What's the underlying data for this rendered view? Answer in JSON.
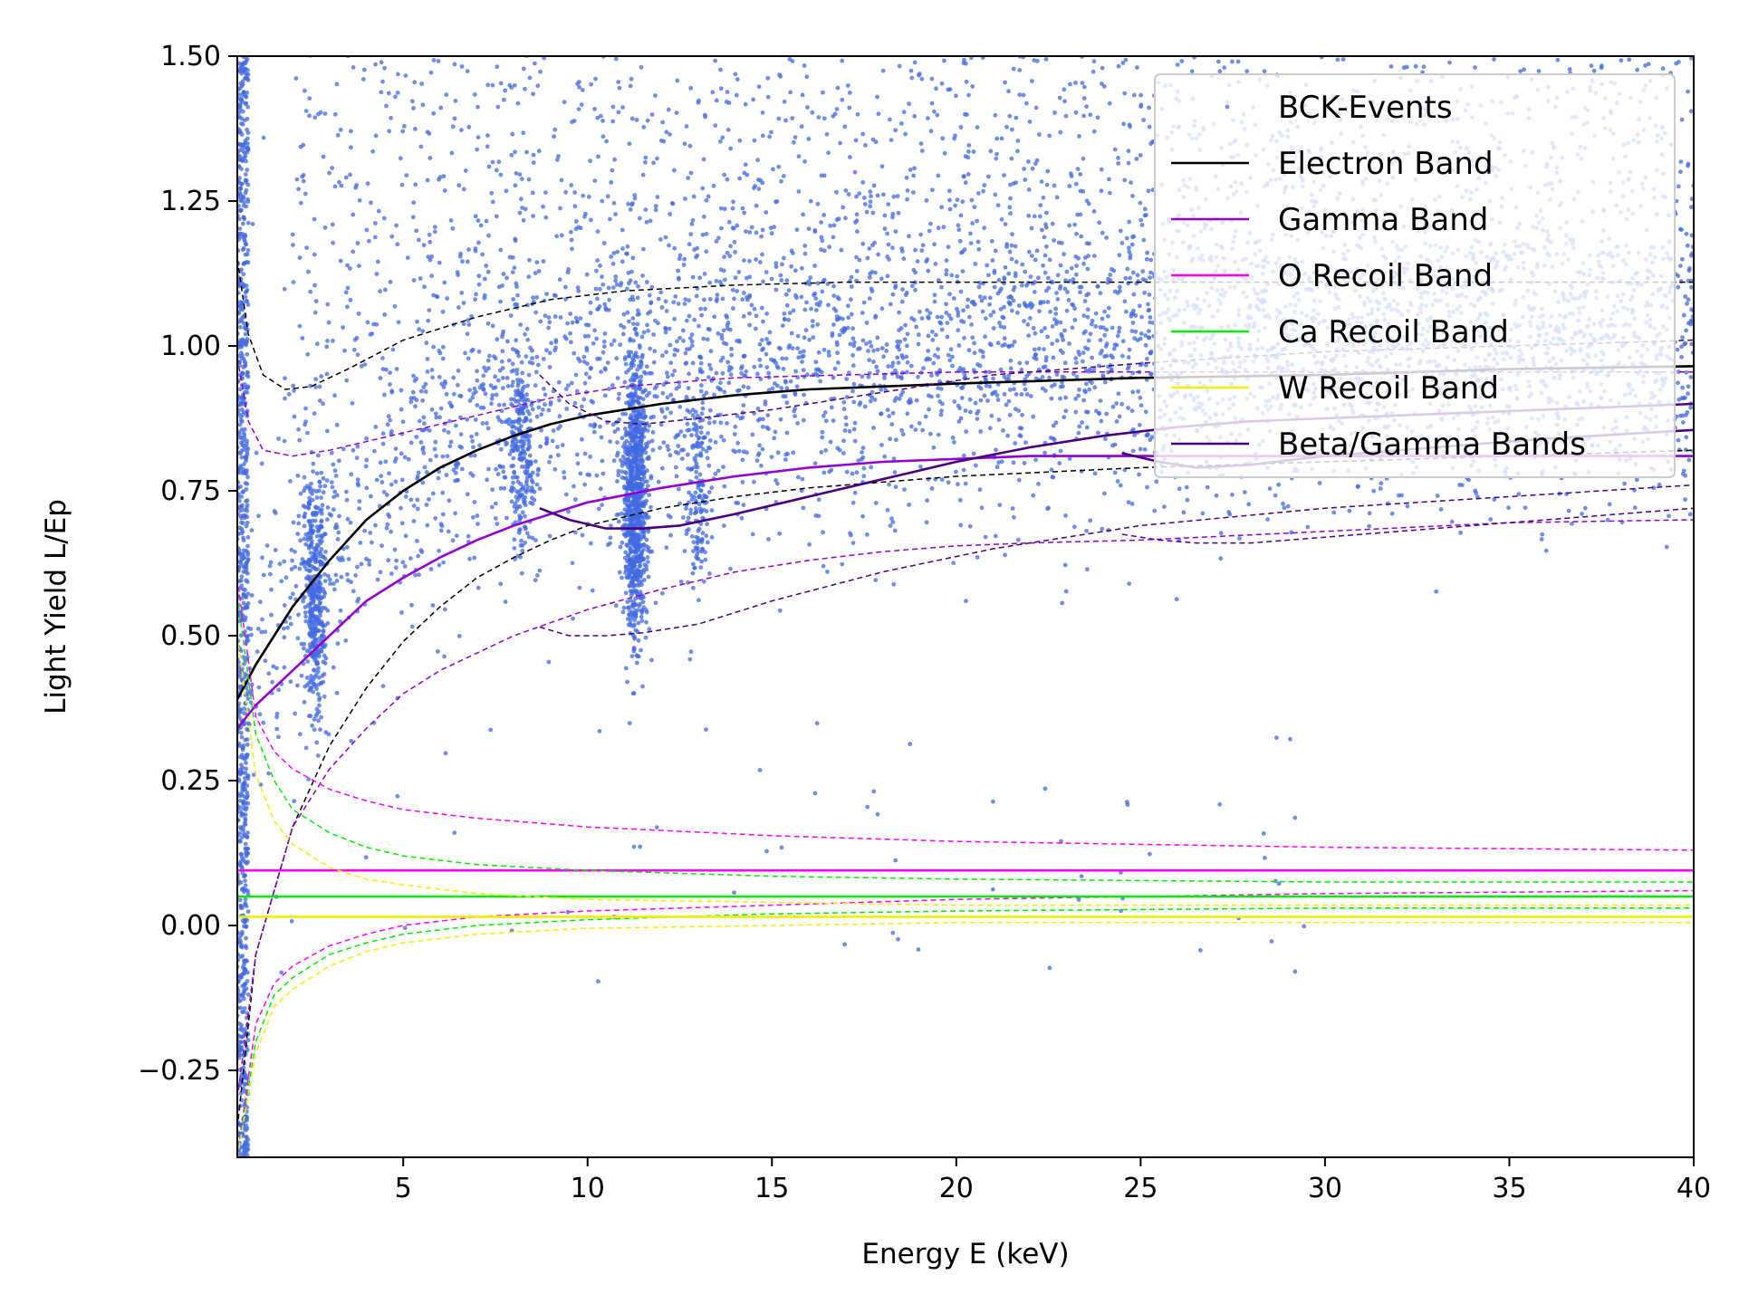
{
  "chart_data": {
    "type": "scatter",
    "xlabel": "Energy E (keV)",
    "ylabel": "Light Yield L/Ep",
    "xlim": [
      0.5,
      40
    ],
    "ylim": [
      -0.4,
      1.5
    ],
    "xticks": [
      5,
      10,
      15,
      20,
      25,
      30,
      35,
      40
    ],
    "xtick_labels": [
      "5",
      "10",
      "15",
      "20",
      "25",
      "30",
      "35",
      "40"
    ],
    "yticks": [
      -0.25,
      0,
      0.25,
      0.5,
      0.75,
      1.0,
      1.25,
      1.5
    ],
    "ytick_labels": [
      "−0.25",
      "0.00",
      "0.25",
      "0.50",
      "0.75",
      "1.00",
      "1.25",
      "1.50"
    ],
    "legend_position": "top-right",
    "scatter_series": {
      "name": "BCK-Events",
      "color": "#4169e1",
      "approx_count": 9000,
      "clusters": [
        {
          "label": "continuum",
          "x_range": [
            0.5,
            40
          ],
          "y_center": "electron band",
          "spread": 0.13
        },
        {
          "label": "low-energy noise",
          "x_range": [
            0.5,
            0.8
          ],
          "y_range": [
            -0.4,
            1.5
          ]
        },
        {
          "label": "line ~2.6 keV",
          "x": 2.6,
          "y_range": [
            0.3,
            0.85
          ]
        },
        {
          "label": "line ~8.2 keV",
          "x": 8.2,
          "y_range": [
            0.6,
            1.0
          ]
        },
        {
          "label": "line ~11.3 keV",
          "x": 11.3,
          "y_range": [
            0.45,
            1.02
          ]
        },
        {
          "label": "line ~13 keV",
          "x": 13.0,
          "y_range": [
            0.55,
            0.95
          ]
        }
      ]
    },
    "band_lines": [
      {
        "name": "Electron Band",
        "color": "#000000",
        "style": "solid",
        "x": [
          0.5,
          1,
          2,
          3,
          4,
          5,
          6,
          7,
          8,
          9,
          10,
          12,
          14,
          16,
          18,
          20,
          25,
          30,
          35,
          40
        ],
        "y": [
          0.39,
          0.45,
          0.55,
          0.63,
          0.7,
          0.75,
          0.79,
          0.82,
          0.845,
          0.865,
          0.88,
          0.9,
          0.915,
          0.925,
          0.93,
          0.935,
          0.945,
          0.95,
          0.96,
          0.965
        ]
      },
      {
        "name": "Electron Band upper",
        "color": "#000000",
        "style": "dashed",
        "x": [
          0.5,
          0.8,
          1.2,
          1.8,
          2.5,
          3.5,
          5,
          7,
          9,
          11,
          14,
          17,
          20,
          25,
          30,
          35,
          40
        ],
        "y": [
          1.15,
          1.02,
          0.95,
          0.925,
          0.93,
          0.96,
          1.01,
          1.05,
          1.08,
          1.095,
          1.105,
          1.11,
          1.11,
          1.11,
          1.11,
          1.11,
          1.11
        ]
      },
      {
        "name": "Electron Band lower",
        "color": "#000000",
        "style": "dashed",
        "x": [
          0.5,
          1,
          2,
          3,
          4,
          5,
          6,
          7,
          8,
          9,
          10,
          12,
          14,
          16,
          18,
          20,
          25,
          30,
          35,
          40
        ],
        "y": [
          -0.35,
          -0.05,
          0.17,
          0.31,
          0.41,
          0.49,
          0.55,
          0.6,
          0.635,
          0.665,
          0.69,
          0.72,
          0.74,
          0.755,
          0.765,
          0.775,
          0.79,
          0.8,
          0.81,
          0.82
        ]
      },
      {
        "name": "Gamma Band",
        "color": "#9400d3",
        "style": "solid",
        "x": [
          0.5,
          1,
          2,
          3,
          4,
          5,
          6,
          7,
          8,
          9,
          10,
          12,
          14,
          16,
          18,
          20,
          22,
          24,
          25,
          30,
          35,
          40
        ],
        "y": [
          0.34,
          0.38,
          0.44,
          0.5,
          0.56,
          0.6,
          0.635,
          0.665,
          0.69,
          0.71,
          0.73,
          0.755,
          0.775,
          0.79,
          0.8,
          0.805,
          0.81,
          0.81,
          0.81,
          0.81,
          0.81,
          0.81
        ]
      },
      {
        "name": "Gamma Band upper",
        "color": "#9400d3",
        "style": "dashed",
        "x": [
          0.5,
          0.8,
          1.2,
          2,
          3,
          5,
          7,
          9,
          11,
          14,
          17,
          20,
          25,
          30,
          35,
          40
        ],
        "y": [
          0.98,
          0.87,
          0.82,
          0.81,
          0.82,
          0.85,
          0.88,
          0.91,
          0.93,
          0.945,
          0.95,
          0.955,
          0.955,
          0.955,
          0.955,
          0.955
        ]
      },
      {
        "name": "Gamma Band lower",
        "color": "#9400d3",
        "style": "dashed",
        "x": [
          0.5,
          1,
          2,
          3,
          4,
          5,
          6,
          8,
          10,
          12,
          14,
          16,
          18,
          20,
          22,
          25,
          30,
          35,
          40
        ],
        "y": [
          -0.3,
          -0.05,
          0.17,
          0.27,
          0.34,
          0.4,
          0.44,
          0.5,
          0.545,
          0.58,
          0.61,
          0.63,
          0.645,
          0.655,
          0.66,
          0.665,
          0.68,
          0.695,
          0.7
        ]
      },
      {
        "name": "O Recoil Band",
        "color": "#ff00ff",
        "style": "solid",
        "x": [
          0.5,
          40
        ],
        "y": [
          0.095,
          0.095
        ]
      },
      {
        "name": "O Recoil Band upper",
        "color": "#ff00ff",
        "style": "dashed",
        "x": [
          0.5,
          1,
          1.5,
          2,
          3,
          4,
          5,
          7,
          10,
          15,
          20,
          30,
          40
        ],
        "y": [
          0.6,
          0.36,
          0.3,
          0.27,
          0.235,
          0.215,
          0.2,
          0.185,
          0.17,
          0.155,
          0.145,
          0.135,
          0.13
        ]
      },
      {
        "name": "O Recoil Band lower",
        "color": "#ff00ff",
        "style": "dashed",
        "x": [
          0.5,
          1,
          1.5,
          2,
          3,
          4,
          5,
          7,
          10,
          15,
          20,
          30,
          40
        ],
        "y": [
          -0.4,
          -0.17,
          -0.1,
          -0.07,
          -0.035,
          -0.015,
          0.0,
          0.015,
          0.025,
          0.035,
          0.045,
          0.055,
          0.06
        ]
      },
      {
        "name": "Ca Recoil Band",
        "color": "#00ee00",
        "style": "solid",
        "x": [
          0.5,
          40
        ],
        "y": [
          0.05,
          0.05
        ]
      },
      {
        "name": "Ca Recoil Band upper",
        "color": "#00ee00",
        "style": "dashed",
        "x": [
          0.5,
          1,
          1.5,
          2,
          3,
          4,
          5,
          7,
          10,
          15,
          20,
          30,
          40
        ],
        "y": [
          0.57,
          0.33,
          0.25,
          0.2,
          0.16,
          0.135,
          0.12,
          0.105,
          0.095,
          0.085,
          0.08,
          0.075,
          0.075
        ]
      },
      {
        "name": "Ca Recoil Band lower",
        "color": "#00ee00",
        "style": "dashed",
        "x": [
          0.5,
          1,
          1.5,
          2,
          3,
          4,
          5,
          7,
          10,
          15,
          20,
          30,
          40
        ],
        "y": [
          -0.4,
          -0.2,
          -0.12,
          -0.09,
          -0.05,
          -0.03,
          -0.015,
          0.0,
          0.01,
          0.02,
          0.025,
          0.03,
          0.03
        ]
      },
      {
        "name": "W Recoil Band",
        "color": "#f0f000",
        "style": "solid",
        "x": [
          0.5,
          40
        ],
        "y": [
          0.015,
          0.015
        ]
      },
      {
        "name": "W Recoil Band upper",
        "color": "#f0f000",
        "style": "dashed",
        "x": [
          0.5,
          1,
          1.5,
          2,
          3,
          4,
          5,
          7,
          10,
          15,
          20,
          30,
          40
        ],
        "y": [
          0.5,
          0.26,
          0.18,
          0.14,
          0.1,
          0.08,
          0.07,
          0.055,
          0.045,
          0.04,
          0.035,
          0.035,
          0.035
        ]
      },
      {
        "name": "W Recoil Band lower",
        "color": "#f0f000",
        "style": "dashed",
        "x": [
          0.5,
          1,
          1.5,
          2,
          3,
          4,
          5,
          7,
          10,
          15,
          20,
          30,
          40
        ],
        "y": [
          -0.4,
          -0.22,
          -0.14,
          -0.11,
          -0.07,
          -0.045,
          -0.03,
          -0.015,
          -0.005,
          0.0,
          0.005,
          0.005,
          0.005
        ]
      },
      {
        "name": "Beta/Gamma Band 1",
        "color": "#4b0082",
        "style": "solid",
        "x": [
          8.7,
          9.5,
          10.5,
          11.5,
          12.5,
          14,
          16,
          18,
          20,
          22,
          24,
          26,
          28,
          30,
          34,
          40
        ],
        "y": [
          0.72,
          0.7,
          0.685,
          0.685,
          0.69,
          0.71,
          0.74,
          0.77,
          0.8,
          0.825,
          0.845,
          0.86,
          0.87,
          0.875,
          0.885,
          0.9
        ]
      },
      {
        "name": "Beta/Gamma Band 1 upper",
        "color": "#4b0082",
        "style": "dashed",
        "x": [
          8.7,
          9.5,
          10.5,
          11.5,
          13,
          15,
          18,
          21,
          25,
          30,
          35,
          40
        ],
        "y": [
          0.95,
          0.9,
          0.87,
          0.865,
          0.875,
          0.89,
          0.92,
          0.95,
          0.97,
          0.99,
          1.0,
          1.01
        ]
      },
      {
        "name": "Beta/Gamma Band 1 lower",
        "color": "#4b0082",
        "style": "dashed",
        "x": [
          8.7,
          9.5,
          10.5,
          11.5,
          13,
          15,
          18,
          21,
          25,
          30,
          35,
          40
        ],
        "y": [
          0.515,
          0.5,
          0.5,
          0.505,
          0.52,
          0.56,
          0.61,
          0.65,
          0.69,
          0.72,
          0.74,
          0.76
        ]
      },
      {
        "name": "Beta/Gamma Band 2",
        "color": "#4b0082",
        "style": "solid",
        "x": [
          24.5,
          25.5,
          26.5,
          28,
          30,
          33,
          36,
          40
        ],
        "y": [
          0.815,
          0.8,
          0.79,
          0.795,
          0.81,
          0.825,
          0.84,
          0.855
        ]
      },
      {
        "name": "Beta/Gamma Band 2 lower",
        "color": "#4b0082",
        "style": "dashed",
        "x": [
          24.5,
          25.5,
          26.5,
          28,
          30,
          33,
          36,
          40
        ],
        "y": [
          0.675,
          0.665,
          0.66,
          0.66,
          0.67,
          0.685,
          0.7,
          0.72
        ]
      }
    ],
    "legend": [
      {
        "label": "BCK-Events",
        "kind": "marker",
        "color": "#4169e1"
      },
      {
        "label": "Electron Band",
        "kind": "line",
        "color": "#000000"
      },
      {
        "label": "Gamma Band",
        "kind": "line",
        "color": "#9400d3"
      },
      {
        "label": "O Recoil Band",
        "kind": "line",
        "color": "#ff00ff"
      },
      {
        "label": "Ca Recoil Band",
        "kind": "line",
        "color": "#00ee00"
      },
      {
        "label": "W Recoil Band",
        "kind": "line",
        "color": "#f0f000"
      },
      {
        "label": "Beta/Gamma Bands",
        "kind": "line",
        "color": "#4b0082"
      }
    ]
  }
}
